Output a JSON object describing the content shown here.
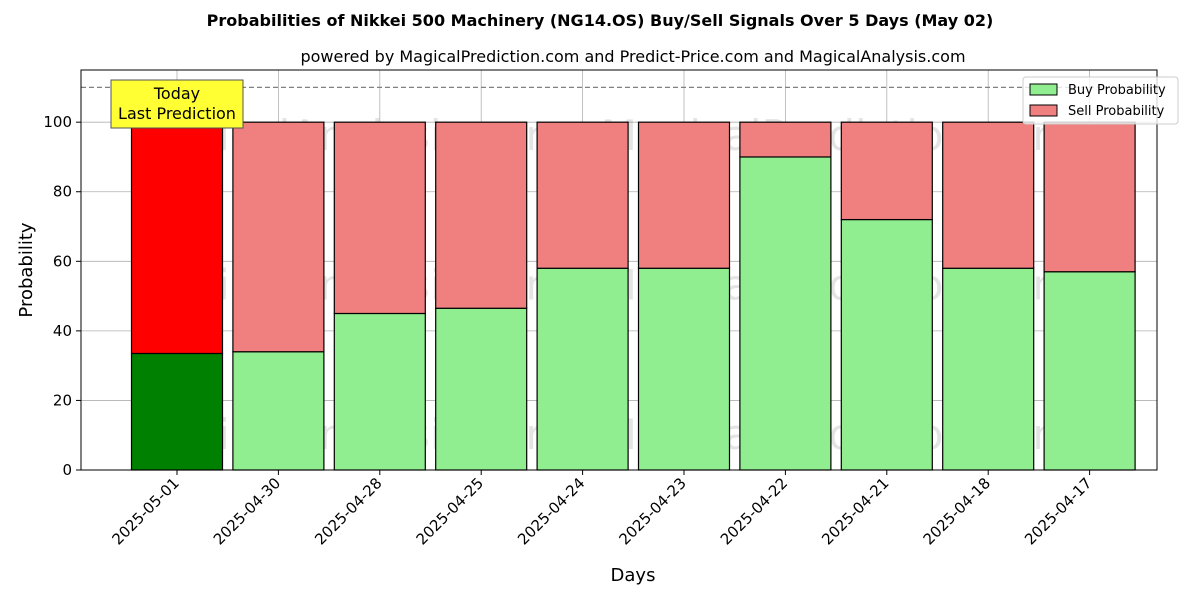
{
  "chart_data": {
    "type": "bar",
    "stacked": true,
    "title": "Probabilities of Nikkei 500 Machinery (NG14.OS) Buy/Sell Signals Over 5 Days (May 02)",
    "subtitle": "powered by MagicalPrediction.com and Predict-Price.com and MagicalAnalysis.com",
    "xlabel": "Days",
    "ylabel": "Probability",
    "ylim": [
      0,
      115
    ],
    "yticks": [
      0,
      20,
      40,
      60,
      80,
      100
    ],
    "grid": true,
    "legend_position": "top-right",
    "categories": [
      "2025-05-01",
      "2025-04-30",
      "2025-04-28",
      "2025-04-25",
      "2025-04-24",
      "2025-04-23",
      "2025-04-22",
      "2025-04-21",
      "2025-04-18",
      "2025-04-17"
    ],
    "series": [
      {
        "name": "Buy Probability",
        "color": "#90ee90",
        "highlight_color": "#008000",
        "values": [
          33.5,
          34,
          45,
          46.5,
          58,
          58,
          90,
          72,
          58,
          57
        ]
      },
      {
        "name": "Sell Probability",
        "color": "#f08080",
        "highlight_color": "#ff0000",
        "values": [
          66.5,
          66,
          55,
          53.5,
          42,
          42,
          10,
          28,
          42,
          43
        ]
      }
    ],
    "reference_line": {
      "y": 110,
      "style": "dashed",
      "color": "#808080"
    },
    "annotation": {
      "lines": [
        "Today",
        "Last Prediction"
      ],
      "category": "2025-05-01",
      "background": "#ffff33"
    },
    "watermarks": [
      "MagicalAnalysis.com",
      "MagicalPrediction.com"
    ]
  }
}
